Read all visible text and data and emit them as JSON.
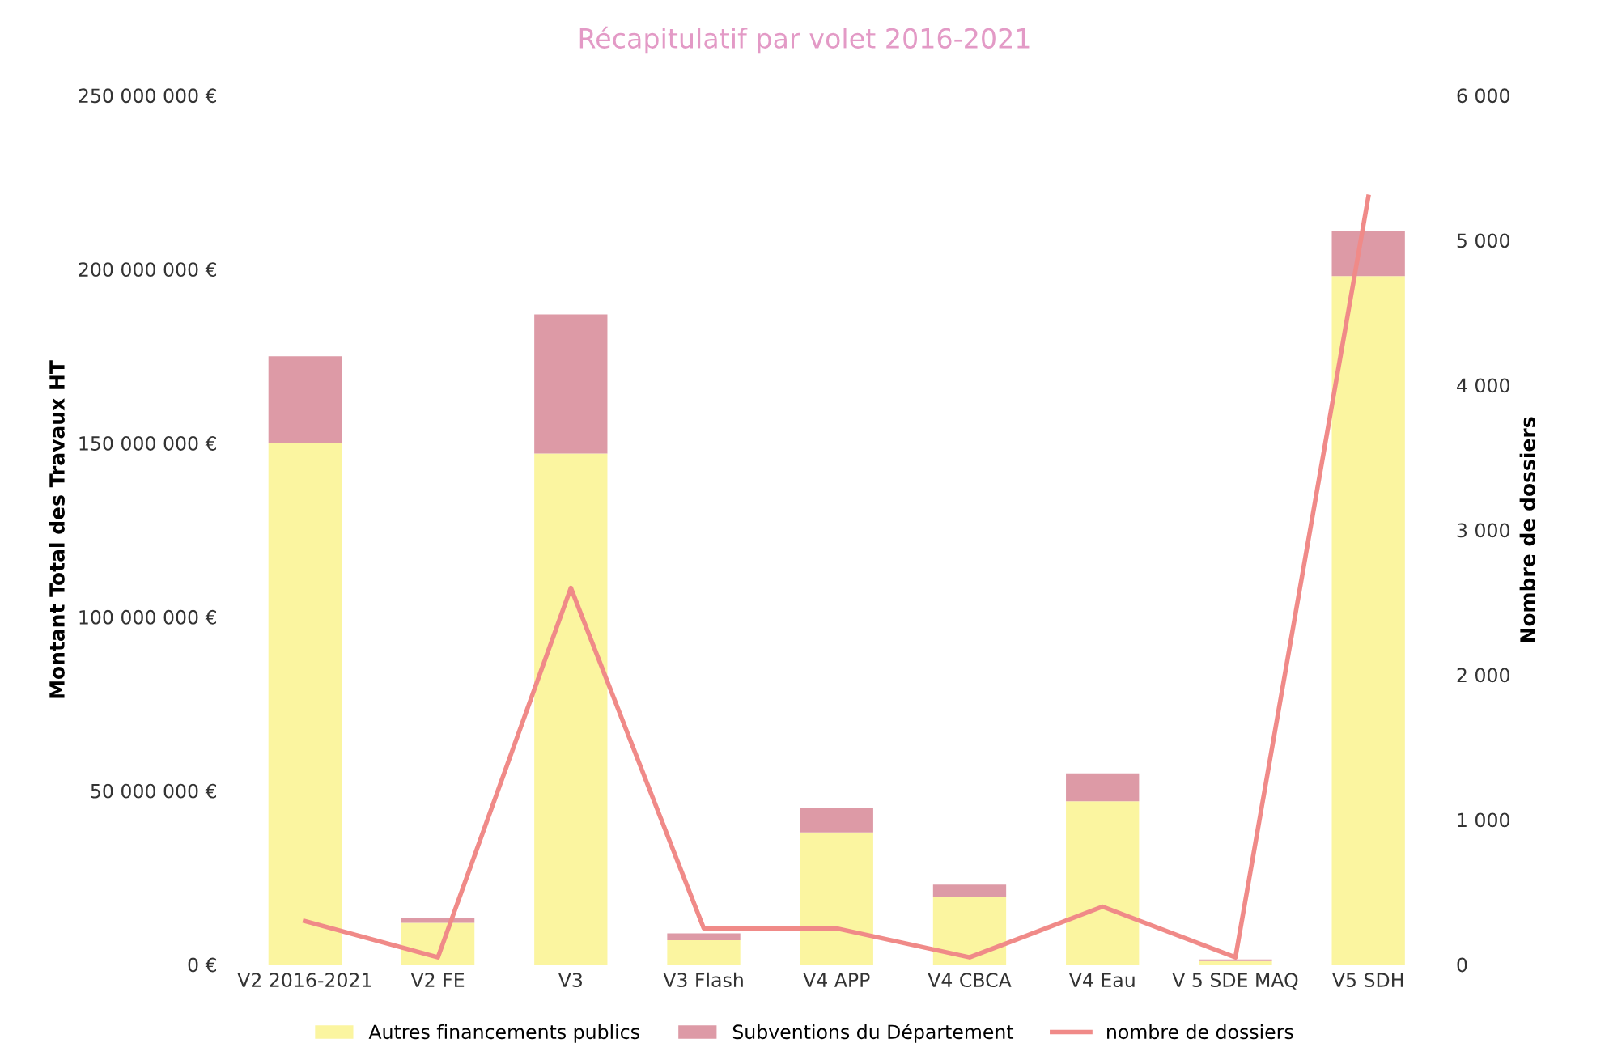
{
  "chart_data": {
    "type": "bar",
    "title": "Récapitulatif par volet 2016-2021",
    "ylabel": "Montant Total des Travaux HT",
    "y2label": "Nombre de dossiers",
    "categories": [
      "V2 2016-2021",
      "V2 FE",
      "V3",
      "V3 Flash",
      "V4 APP",
      "V4 CBCA",
      "V4 Eau",
      "V 5 SDE MAQ",
      "V5 SDH"
    ],
    "stacked": true,
    "series": [
      {
        "name": "Autres financements publics",
        "color": "#fbf5a0",
        "values": [
          150000000,
          12000000,
          147000000,
          7000000,
          38000000,
          19500000,
          47000000,
          1000000,
          198000000
        ]
      },
      {
        "name": "Subventions du Département",
        "color": "#dd9aa6",
        "values": [
          25000000,
          1500000,
          40000000,
          2000000,
          7000000,
          3500000,
          8000000,
          500000,
          13000000
        ]
      },
      {
        "name": "nombre de dossiers",
        "type": "line",
        "axis": "y2",
        "color": "#f08a88",
        "values": [
          300,
          50,
          2600,
          250,
          250,
          50,
          400,
          50,
          5300
        ]
      }
    ],
    "ylim": [
      0,
      250000000
    ],
    "yticks": [
      {
        "value": 0,
        "label": "0 €"
      },
      {
        "value": 50000000,
        "label": "50 000 000 €"
      },
      {
        "value": 100000000,
        "label": "100 000 000 €"
      },
      {
        "value": 150000000,
        "label": "150 000 000 €"
      },
      {
        "value": 200000000,
        "label": "200 000 000 €"
      },
      {
        "value": 250000000,
        "label": "250 000 000 €"
      }
    ],
    "y2lim": [
      0,
      6000
    ],
    "y2ticks": [
      0,
      {
        "value": 1000,
        "label": "1 000"
      },
      {
        "value": 2000,
        "label": "2 000"
      },
      {
        "value": 3000,
        "label": "3 000"
      },
      {
        "value": 4000,
        "label": "4 000"
      },
      {
        "value": 5000,
        "label": "5 000"
      },
      {
        "value": 6000,
        "label": "6 000"
      }
    ],
    "grid": false,
    "legend": "bottom",
    "marker": "none",
    "line_style": "solid"
  }
}
